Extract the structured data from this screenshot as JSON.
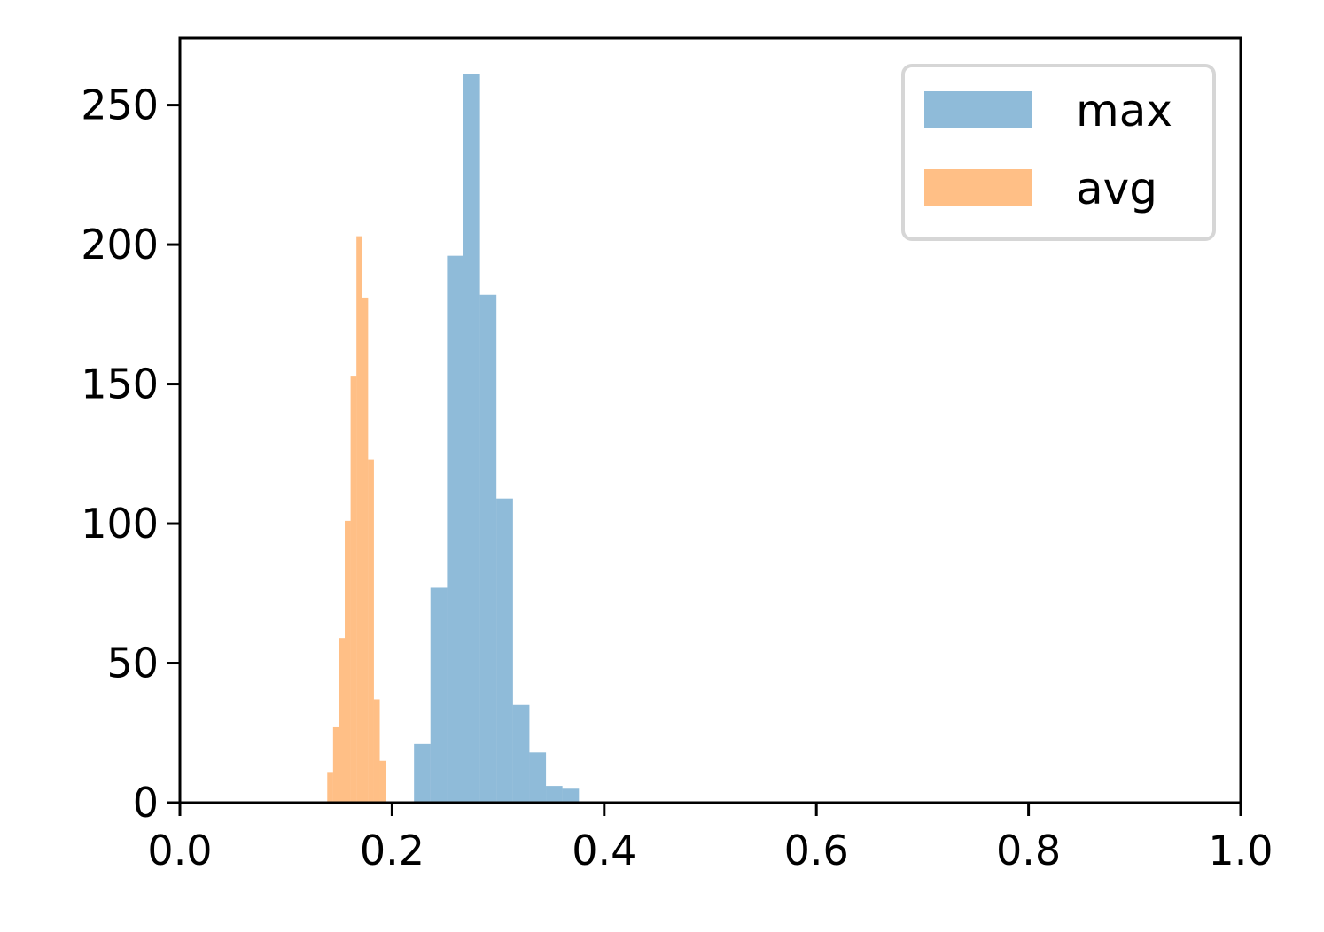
{
  "chart_data": {
    "type": "bar",
    "subtype": "histogram",
    "title": "",
    "xlabel": "",
    "ylabel": "",
    "xlim": [
      0.0,
      1.0
    ],
    "ylim": [
      0,
      274
    ],
    "xticks": [
      0.0,
      0.2,
      0.4,
      0.6,
      0.8,
      1.0
    ],
    "xtick_labels": [
      "0.0",
      "0.2",
      "0.4",
      "0.6",
      "0.8",
      "1.0"
    ],
    "yticks": [
      0,
      50,
      100,
      150,
      200,
      250
    ],
    "ytick_labels": [
      "0",
      "50",
      "100",
      "150",
      "200",
      "250"
    ],
    "grid": false,
    "legend": {
      "placement": "top-right"
    },
    "series": [
      {
        "name": "max",
        "color": "#1f77b4",
        "alpha": 0.5,
        "bins": [
          {
            "x0": 0.2207,
            "x1": 0.2362,
            "count": 21
          },
          {
            "x0": 0.2362,
            "x1": 0.2518,
            "count": 77
          },
          {
            "x0": 0.2518,
            "x1": 0.2673,
            "count": 196
          },
          {
            "x0": 0.2673,
            "x1": 0.2829,
            "count": 261
          },
          {
            "x0": 0.2829,
            "x1": 0.2984,
            "count": 182
          },
          {
            "x0": 0.2984,
            "x1": 0.314,
            "count": 109
          },
          {
            "x0": 0.314,
            "x1": 0.3295,
            "count": 35
          },
          {
            "x0": 0.3295,
            "x1": 0.3451,
            "count": 18
          },
          {
            "x0": 0.3451,
            "x1": 0.3606,
            "count": 6
          },
          {
            "x0": 0.3606,
            "x1": 0.3762,
            "count": 5
          }
        ]
      },
      {
        "name": "avg",
        "color": "#ff7f0e",
        "alpha": 0.5,
        "bins": [
          {
            "x0": 0.1389,
            "x1": 0.1444,
            "count": 11
          },
          {
            "x0": 0.1444,
            "x1": 0.1499,
            "count": 27
          },
          {
            "x0": 0.1499,
            "x1": 0.1554,
            "count": 59
          },
          {
            "x0": 0.1554,
            "x1": 0.1609,
            "count": 101
          },
          {
            "x0": 0.1609,
            "x1": 0.1664,
            "count": 153
          },
          {
            "x0": 0.1664,
            "x1": 0.1719,
            "count": 203
          },
          {
            "x0": 0.1719,
            "x1": 0.1774,
            "count": 181
          },
          {
            "x0": 0.1774,
            "x1": 0.1829,
            "count": 123
          },
          {
            "x0": 0.1829,
            "x1": 0.1884,
            "count": 37
          },
          {
            "x0": 0.1884,
            "x1": 0.1939,
            "count": 15
          }
        ]
      }
    ]
  }
}
